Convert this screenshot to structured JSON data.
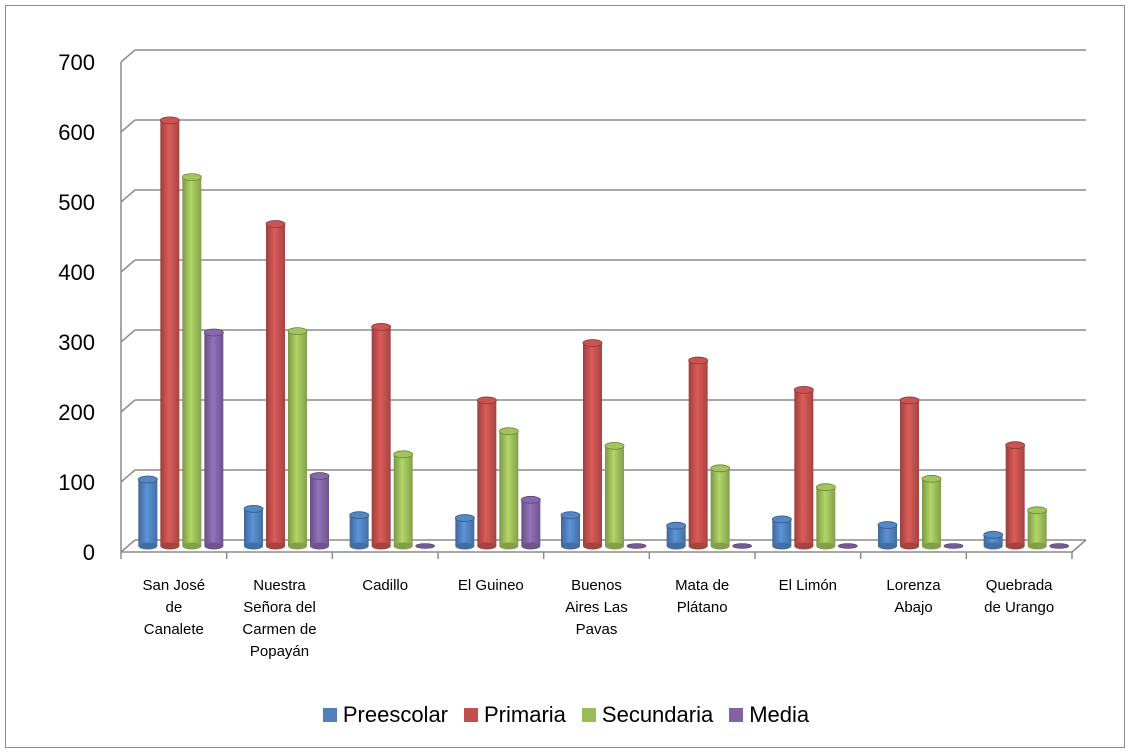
{
  "chart_data": {
    "type": "bar",
    "title": "",
    "xlabel": "",
    "ylabel": "",
    "ylim": [
      0,
      700
    ],
    "yticks": [
      "0",
      "100",
      "200",
      "300",
      "400",
      "500",
      "600",
      "700"
    ],
    "categories": [
      "San José de Canalete",
      "Nuestra Señora del Carmen de Popayán",
      "Cadillo",
      "El Guineo",
      "Buenos Aires Las Pavas",
      "Mata de Plátano",
      "El Limón",
      "Lorenza Abajo",
      "Quebrada de Urango"
    ],
    "category_lines": [
      [
        "San José",
        "de",
        "Canalete"
      ],
      [
        "Nuestra",
        "Señora del",
        "Carmen de",
        "Popayán"
      ],
      [
        "Cadillo"
      ],
      [
        "El Guineo"
      ],
      [
        "Buenos",
        "Aires Las",
        "Pavas"
      ],
      [
        "Mata de",
        "Plátano"
      ],
      [
        "El Limón"
      ],
      [
        "Lorenza",
        "Abajo"
      ],
      [
        "Quebrada",
        "de Urango"
      ]
    ],
    "series": [
      {
        "name": "Preescolar",
        "color": "#4f81bd",
        "values": [
          95,
          53,
          44,
          40,
          44,
          29,
          38,
          30,
          16
        ]
      },
      {
        "name": "Primaria",
        "color": "#c0504d",
        "values": [
          608,
          460,
          313,
          208,
          290,
          265,
          223,
          208,
          144
        ]
      },
      {
        "name": "Secundaria",
        "color": "#9bbb59",
        "values": [
          527,
          307,
          131,
          164,
          143,
          111,
          84,
          96,
          51
        ]
      },
      {
        "name": "Media",
        "color": "#8064a2",
        "values": [
          305,
          100,
          0,
          66,
          0,
          0,
          0,
          0,
          0
        ]
      }
    ],
    "grid": true,
    "legend_position": "bottom"
  }
}
